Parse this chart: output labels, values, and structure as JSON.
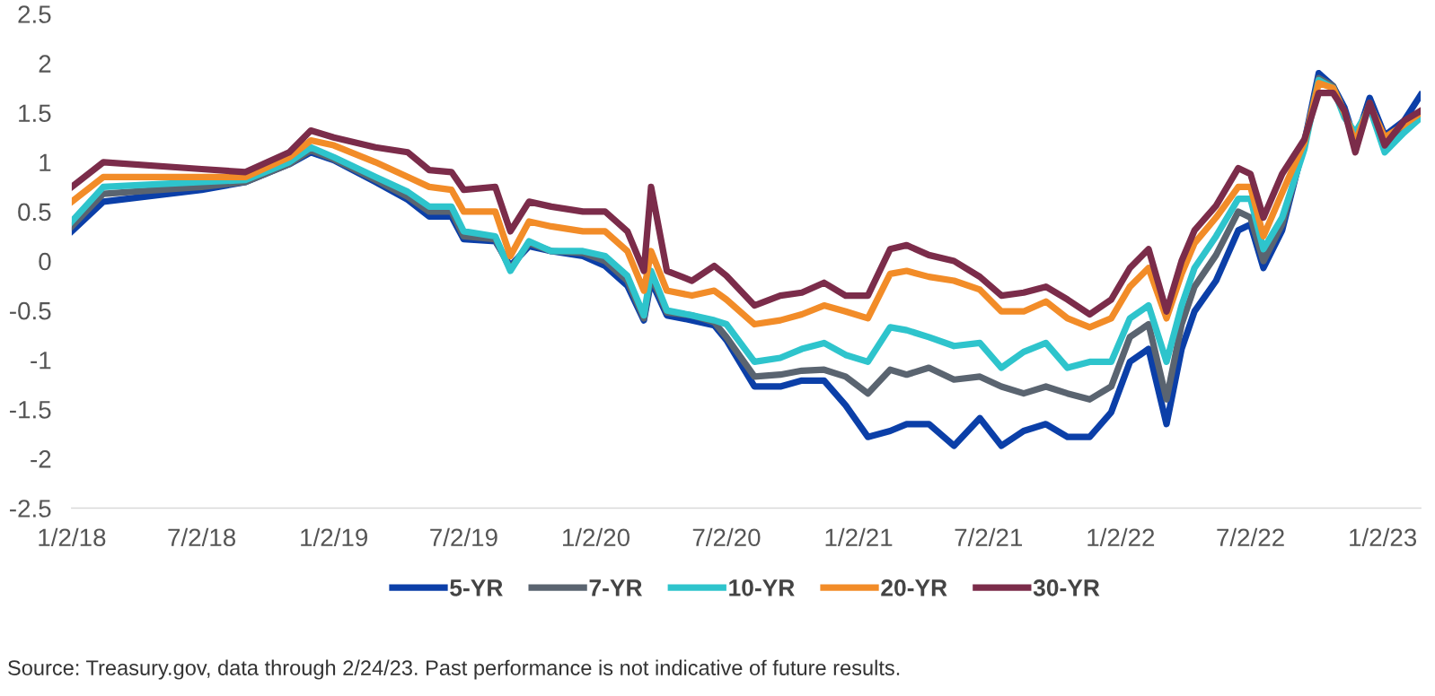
{
  "chart_data": {
    "type": "line",
    "x": [
      "2018-01-02",
      "2018-02-15",
      "2018-07-02",
      "2018-09-01",
      "2018-11-01",
      "2018-12-01",
      "2019-01-02",
      "2019-03-01",
      "2019-04-15",
      "2019-05-15",
      "2019-06-15",
      "2019-07-02",
      "2019-08-15",
      "2019-09-05",
      "2019-10-01",
      "2019-11-01",
      "2019-12-15",
      "2020-01-15",
      "2020-02-15",
      "2020-03-09",
      "2020-03-19",
      "2020-04-10",
      "2020-05-15",
      "2020-06-15",
      "2020-07-02",
      "2020-08-10",
      "2020-09-15",
      "2020-10-15",
      "2020-11-15",
      "2020-12-15",
      "2021-01-15",
      "2021-02-15",
      "2021-03-10",
      "2021-04-10",
      "2021-05-15",
      "2021-06-20",
      "2021-07-20",
      "2021-08-20",
      "2021-09-20",
      "2021-10-20",
      "2021-11-20",
      "2021-12-20",
      "2022-01-15",
      "2022-02-10",
      "2022-03-07",
      "2022-03-28",
      "2022-04-15",
      "2022-05-15",
      "2022-06-15",
      "2022-07-02",
      "2022-07-20",
      "2022-08-15",
      "2022-09-15",
      "2022-10-05",
      "2022-10-25",
      "2022-11-10",
      "2022-11-25",
      "2022-12-15",
      "2023-01-05",
      "2023-02-01",
      "2023-02-24"
    ],
    "series": [
      {
        "name": "5-YR",
        "color": "#0b3fa8",
        "values": [
          0.3,
          0.6,
          0.72,
          0.8,
          0.98,
          1.1,
          1.02,
          0.8,
          0.62,
          0.45,
          0.45,
          0.22,
          0.2,
          -0.05,
          0.15,
          0.1,
          0.05,
          -0.05,
          -0.25,
          -0.6,
          -0.2,
          -0.55,
          -0.6,
          -0.65,
          -0.8,
          -1.27,
          -1.27,
          -1.21,
          -1.21,
          -1.46,
          -1.78,
          -1.72,
          -1.65,
          -1.65,
          -1.87,
          -1.59,
          -1.87,
          -1.72,
          -1.65,
          -1.78,
          -1.78,
          -1.53,
          -1.02,
          -0.89,
          -1.65,
          -0.89,
          -0.51,
          -0.2,
          0.31,
          0.37,
          -0.07,
          0.31,
          1.2,
          1.9,
          1.77,
          1.55,
          1.2,
          1.65,
          1.27,
          1.42,
          1.68
        ]
      },
      {
        "name": "7-YR",
        "color": "#5a6470",
        "values": [
          0.35,
          0.68,
          0.75,
          0.8,
          0.98,
          1.12,
          1.03,
          0.82,
          0.65,
          0.5,
          0.5,
          0.25,
          0.22,
          -0.08,
          0.18,
          0.1,
          0.08,
          0.0,
          -0.2,
          -0.58,
          -0.15,
          -0.52,
          -0.55,
          -0.62,
          -0.77,
          -1.17,
          -1.15,
          -1.11,
          -1.1,
          -1.17,
          -1.34,
          -1.1,
          -1.15,
          -1.08,
          -1.2,
          -1.17,
          -1.27,
          -1.34,
          -1.27,
          -1.34,
          -1.4,
          -1.27,
          -0.77,
          -0.64,
          -1.4,
          -0.64,
          -0.26,
          0.06,
          0.5,
          0.44,
          0.0,
          0.37,
          1.18,
          1.85,
          1.77,
          1.5,
          1.18,
          1.6,
          1.2,
          1.35,
          1.5
        ]
      },
      {
        "name": "10-YR",
        "color": "#2ec4cc",
        "values": [
          0.4,
          0.75,
          0.8,
          0.82,
          1.0,
          1.15,
          1.05,
          0.85,
          0.7,
          0.55,
          0.55,
          0.3,
          0.25,
          -0.1,
          0.2,
          0.1,
          0.1,
          0.05,
          -0.15,
          -0.55,
          -0.1,
          -0.5,
          -0.55,
          -0.6,
          -0.64,
          -1.02,
          -0.98,
          -0.89,
          -0.83,
          -0.95,
          -1.02,
          -0.67,
          -0.7,
          -0.77,
          -0.86,
          -0.83,
          -1.08,
          -0.92,
          -0.83,
          -1.08,
          -1.02,
          -1.02,
          -0.58,
          -0.45,
          -1.02,
          -0.45,
          -0.07,
          0.25,
          0.63,
          0.63,
          0.12,
          0.44,
          1.13,
          1.83,
          1.75,
          1.45,
          1.3,
          1.55,
          1.1,
          1.3,
          1.45
        ]
      },
      {
        "name": "20-YR",
        "color": "#f28c28",
        "values": [
          0.6,
          0.85,
          0.85,
          0.85,
          1.05,
          1.22,
          1.17,
          1.0,
          0.85,
          0.75,
          0.72,
          0.5,
          0.5,
          0.05,
          0.4,
          0.35,
          0.3,
          0.3,
          0.1,
          -0.3,
          0.1,
          -0.3,
          -0.35,
          -0.3,
          -0.39,
          -0.64,
          -0.6,
          -0.54,
          -0.45,
          -0.51,
          -0.58,
          -0.13,
          -0.1,
          -0.16,
          -0.2,
          -0.29,
          -0.51,
          -0.51,
          -0.41,
          -0.58,
          -0.67,
          -0.58,
          -0.26,
          -0.07,
          -0.58,
          -0.13,
          0.18,
          0.44,
          0.75,
          0.75,
          0.25,
          0.69,
          1.2,
          1.8,
          1.75,
          1.5,
          1.2,
          1.58,
          1.25,
          1.38,
          1.5
        ]
      },
      {
        "name": "30-YR",
        "color": "#7b2c4a",
        "values": [
          0.75,
          1.0,
          0.93,
          0.9,
          1.1,
          1.32,
          1.25,
          1.15,
          1.1,
          0.92,
          0.9,
          0.72,
          0.75,
          0.3,
          0.6,
          0.55,
          0.5,
          0.5,
          0.3,
          -0.1,
          0.75,
          -0.1,
          -0.2,
          -0.05,
          -0.15,
          -0.45,
          -0.35,
          -0.32,
          -0.22,
          -0.35,
          -0.35,
          0.12,
          0.16,
          0.06,
          0,
          -0.16,
          -0.35,
          -0.32,
          -0.26,
          -0.39,
          -0.54,
          -0.39,
          -0.07,
          0.12,
          -0.51,
          0,
          0.31,
          0.56,
          0.94,
          0.88,
          0.44,
          0.88,
          1.23,
          1.7,
          1.7,
          1.52,
          1.1,
          1.6,
          1.17,
          1.42,
          1.52
        ]
      }
    ],
    "xticks": [
      {
        "value": "2018-01-02",
        "label": "1/2/18"
      },
      {
        "value": "2018-07-02",
        "label": "7/2/18"
      },
      {
        "value": "2019-01-02",
        "label": "1/2/19"
      },
      {
        "value": "2019-07-02",
        "label": "7/2/19"
      },
      {
        "value": "2020-01-02",
        "label": "1/2/20"
      },
      {
        "value": "2020-07-02",
        "label": "7/2/20"
      },
      {
        "value": "2021-01-02",
        "label": "1/2/21"
      },
      {
        "value": "2021-07-02",
        "label": "7/2/21"
      },
      {
        "value": "2022-01-02",
        "label": "1/2/22"
      },
      {
        "value": "2022-07-02",
        "label": "7/2/22"
      },
      {
        "value": "2023-01-02",
        "label": "1/2/23"
      }
    ],
    "xlim": [
      "2018-01-02",
      "2023-02-24"
    ],
    "ylim": [
      -2.5,
      2.5
    ],
    "yticks": [
      -2.5,
      -2,
      -1.5,
      -1,
      -0.5,
      0,
      0.5,
      1,
      1.5,
      2,
      2.5
    ],
    "grid": false,
    "legend": "bottom",
    "line_style": "solid",
    "annotations": [
      "Source: Treasury.gov, data through 2/24/23. Past performance is not indicative of future results."
    ]
  }
}
